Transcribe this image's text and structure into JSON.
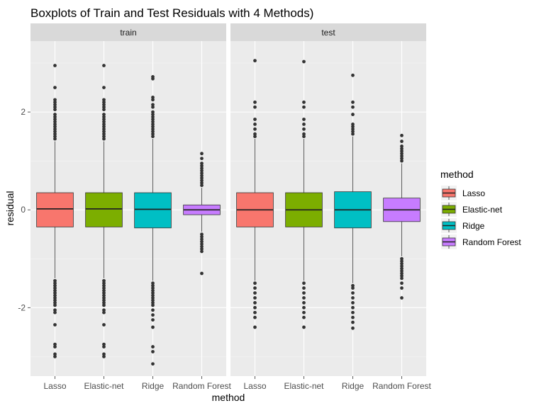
{
  "chart_data": {
    "type": "boxplot",
    "title": "Boxplots of Train and Test Residuals with 4 Methods)",
    "xlabel": "method",
    "ylabel": "residual",
    "ylim": [
      -3.4,
      3.45
    ],
    "yticks": [
      -2,
      0,
      2
    ],
    "grid": true,
    "legend": {
      "title": "method",
      "position": "right"
    },
    "categories": [
      "Lasso",
      "Elastic-net",
      "Ridge",
      "Random Forest"
    ],
    "colors": {
      "Lasso": "#F8766D",
      "Elastic-net": "#7CAE00",
      "Ridge": "#00BFC4",
      "Random Forest": "#C77CFF"
    },
    "panels": [
      {
        "label": "train",
        "boxes": [
          {
            "method": "Lasso",
            "whisker_low": -1.4,
            "q1": -0.35,
            "median": 0.02,
            "q3": 0.35,
            "whisker_high": 1.4,
            "outliers": [
              2.95,
              2.5,
              2.25,
              2.2,
              2.15,
              2.1,
              2.05,
              1.95,
              1.9,
              1.85,
              1.8,
              1.75,
              1.7,
              1.65,
              1.6,
              1.55,
              1.5,
              1.45,
              -1.45,
              -1.5,
              -1.55,
              -1.6,
              -1.65,
              -1.7,
              -1.75,
              -1.8,
              -1.85,
              -1.9,
              -1.95,
              -2.05,
              -2.1,
              -2.35,
              -2.75,
              -2.8,
              -2.95,
              -3.0
            ]
          },
          {
            "method": "Elastic-net",
            "whisker_low": -1.4,
            "q1": -0.35,
            "median": 0.02,
            "q3": 0.35,
            "whisker_high": 1.4,
            "outliers": [
              2.95,
              2.5,
              2.25,
              2.2,
              2.15,
              2.1,
              2.05,
              1.95,
              1.9,
              1.85,
              1.8,
              1.75,
              1.7,
              1.65,
              1.6,
              1.55,
              1.5,
              1.45,
              -1.45,
              -1.5,
              -1.55,
              -1.6,
              -1.65,
              -1.7,
              -1.75,
              -1.8,
              -1.85,
              -1.9,
              -1.95,
              -2.05,
              -2.1,
              -2.35,
              -2.75,
              -2.8,
              -2.95,
              -3.0
            ]
          },
          {
            "method": "Ridge",
            "whisker_low": -1.45,
            "q1": -0.37,
            "median": 0.01,
            "q3": 0.35,
            "whisker_high": 1.45,
            "outliers": [
              2.72,
              2.68,
              2.3,
              2.25,
              2.15,
              2.1,
              2.0,
              1.95,
              1.9,
              1.85,
              1.8,
              1.75,
              1.7,
              1.65,
              1.6,
              1.55,
              1.5,
              -1.5,
              -1.55,
              -1.6,
              -1.65,
              -1.7,
              -1.75,
              -1.8,
              -1.85,
              -1.9,
              -1.95,
              -2.05,
              -2.15,
              -2.25,
              -2.4,
              -2.8,
              -2.9,
              -3.15
            ]
          },
          {
            "method": "Random Forest",
            "whisker_low": -0.45,
            "q1": -0.1,
            "median": 0.0,
            "q3": 0.1,
            "whisker_high": 0.45,
            "outliers": [
              1.15,
              1.05,
              0.95,
              0.9,
              0.85,
              0.8,
              0.75,
              0.7,
              0.65,
              0.6,
              0.55,
              0.5,
              -0.5,
              -0.55,
              -0.6,
              -0.65,
              -0.7,
              -0.75,
              -0.8,
              -0.85,
              -1.3
            ]
          }
        ]
      },
      {
        "label": "test",
        "boxes": [
          {
            "method": "Lasso",
            "whisker_low": -1.45,
            "q1": -0.35,
            "median": 0.0,
            "q3": 0.35,
            "whisker_high": 1.45,
            "outliers": [
              3.05,
              2.2,
              2.1,
              1.85,
              1.75,
              1.65,
              1.55,
              1.5,
              -1.5,
              -1.6,
              -1.7,
              -1.8,
              -1.9,
              -2.0,
              -2.1,
              -2.2,
              -2.4
            ]
          },
          {
            "method": "Elastic-net",
            "whisker_low": -1.45,
            "q1": -0.35,
            "median": 0.0,
            "q3": 0.35,
            "whisker_high": 1.45,
            "outliers": [
              3.03,
              2.2,
              2.1,
              1.85,
              1.75,
              1.65,
              1.55,
              1.5,
              -1.5,
              -1.6,
              -1.7,
              -1.8,
              -1.9,
              -2.0,
              -2.1,
              -2.2,
              -2.4
            ]
          },
          {
            "method": "Ridge",
            "whisker_low": -1.5,
            "q1": -0.37,
            "median": 0.0,
            "q3": 0.37,
            "whisker_high": 1.5,
            "outliers": [
              2.75,
              2.2,
              2.1,
              1.95,
              1.75,
              1.7,
              1.65,
              1.6,
              1.55,
              -1.55,
              -1.6,
              -1.7,
              -1.8,
              -1.9,
              -2.0,
              -2.1,
              -2.2,
              -2.3,
              -2.42
            ]
          },
          {
            "method": "Random Forest",
            "whisker_low": -0.95,
            "q1": -0.24,
            "median": 0.0,
            "q3": 0.24,
            "whisker_high": 0.95,
            "outliers": [
              1.52,
              1.4,
              1.3,
              1.25,
              1.2,
              1.15,
              1.1,
              1.05,
              1.0,
              -1.0,
              -1.05,
              -1.1,
              -1.15,
              -1.2,
              -1.25,
              -1.3,
              -1.35,
              -1.4,
              -1.5,
              -1.6,
              -1.8
            ]
          }
        ]
      }
    ]
  }
}
